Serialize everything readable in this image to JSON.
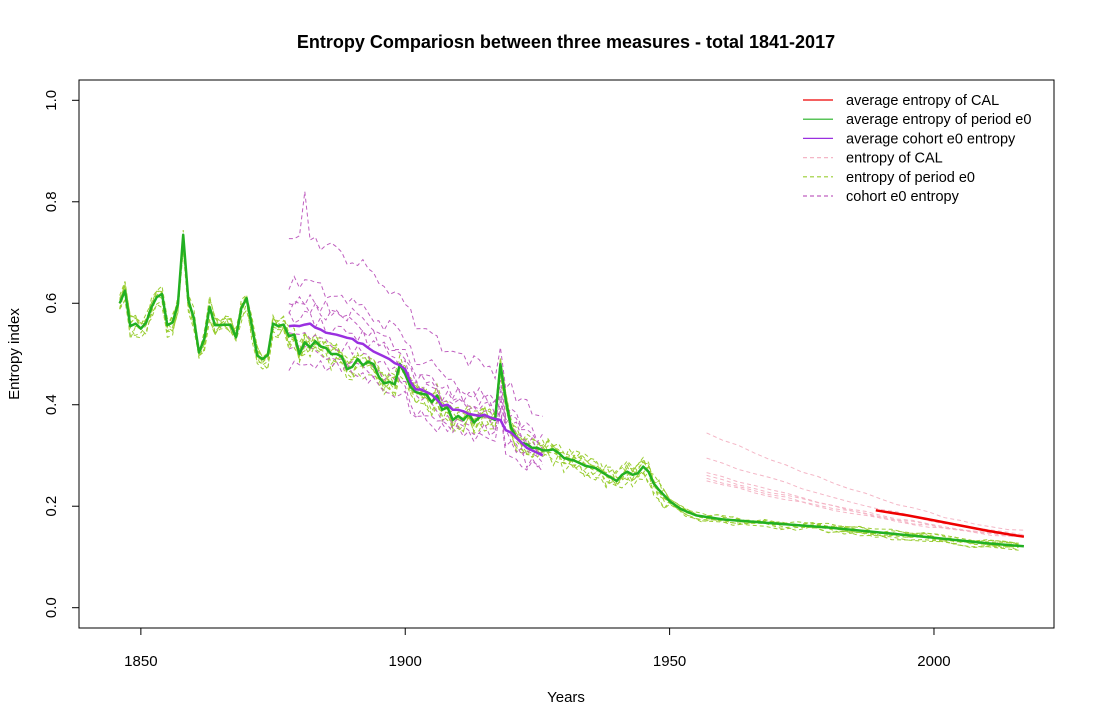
{
  "chart_data": {
    "type": "line",
    "title": "Entropy Compariosn between three measures - total 1841-2017",
    "xlabel": "Years",
    "ylabel": "Entropy index",
    "xlim": [
      1841,
      2017
    ],
    "ylim": [
      0,
      1
    ],
    "x_ticks": [
      "1850",
      "1900",
      "1950",
      "2000"
    ],
    "y_ticks": [
      "0.0",
      "0.2",
      "0.4",
      "0.6",
      "0.8",
      "1.0"
    ],
    "grid": false,
    "legend_position": "top-right",
    "colors": {
      "avg_cal": "#ee0000",
      "avg_period": "#22b022",
      "avg_cohort": "#9a30e0",
      "cal": "#f4b6c6",
      "period": "#9acd32",
      "cohort": "#c060c0"
    },
    "legend": [
      {
        "label": "average entropy of CAL",
        "key": "avg_cal",
        "style": "solid"
      },
      {
        "label": "average entropy of period e0",
        "key": "avg_period",
        "style": "solid"
      },
      {
        "label": "average cohort e0 entropy",
        "key": "avg_cohort",
        "style": "solid"
      },
      {
        "label": "entropy of CAL",
        "key": "cal",
        "style": "dashed"
      },
      {
        "label": "entropy of period e0",
        "key": "period",
        "style": "dashed"
      },
      {
        "label": "cohort e0 entropy",
        "key": "cohort",
        "style": "dashed"
      }
    ],
    "series": [
      {
        "name": "average entropy of period e0",
        "key": "avg_period",
        "points": [
          [
            1846,
            0.6
          ],
          [
            1847,
            0.625
          ],
          [
            1848,
            0.555
          ],
          [
            1849,
            0.56
          ],
          [
            1850,
            0.55
          ],
          [
            1851,
            0.562
          ],
          [
            1852,
            0.592
          ],
          [
            1853,
            0.612
          ],
          [
            1854,
            0.618
          ],
          [
            1855,
            0.557
          ],
          [
            1856,
            0.562
          ],
          [
            1857,
            0.598
          ],
          [
            1858,
            0.735
          ],
          [
            1859,
            0.605
          ],
          [
            1860,
            0.572
          ],
          [
            1861,
            0.503
          ],
          [
            1862,
            0.53
          ],
          [
            1863,
            0.593
          ],
          [
            1864,
            0.557
          ],
          [
            1865,
            0.557
          ],
          [
            1866,
            0.558
          ],
          [
            1867,
            0.557
          ],
          [
            1868,
            0.533
          ],
          [
            1869,
            0.59
          ],
          [
            1870,
            0.61
          ],
          [
            1871,
            0.555
          ],
          [
            1872,
            0.497
          ],
          [
            1873,
            0.49
          ],
          [
            1874,
            0.498
          ],
          [
            1875,
            0.56
          ],
          [
            1876,
            0.555
          ],
          [
            1877,
            0.558
          ],
          [
            1878,
            0.535
          ],
          [
            1879,
            0.538
          ],
          [
            1880,
            0.5
          ],
          [
            1881,
            0.523
          ],
          [
            1882,
            0.513
          ],
          [
            1883,
            0.525
          ],
          [
            1884,
            0.515
          ],
          [
            1885,
            0.512
          ],
          [
            1886,
            0.5
          ],
          [
            1887,
            0.5
          ],
          [
            1888,
            0.495
          ],
          [
            1889,
            0.47
          ],
          [
            1890,
            0.475
          ],
          [
            1891,
            0.49
          ],
          [
            1892,
            0.478
          ],
          [
            1893,
            0.485
          ],
          [
            1894,
            0.48
          ],
          [
            1895,
            0.455
          ],
          [
            1896,
            0.442
          ],
          [
            1897,
            0.445
          ],
          [
            1898,
            0.44
          ],
          [
            1899,
            0.48
          ],
          [
            1900,
            0.46
          ],
          [
            1901,
            0.435
          ],
          [
            1902,
            0.425
          ],
          [
            1903,
            0.422
          ],
          [
            1904,
            0.42
          ],
          [
            1905,
            0.405
          ],
          [
            1906,
            0.418
          ],
          [
            1907,
            0.39
          ],
          [
            1908,
            0.395
          ],
          [
            1909,
            0.37
          ],
          [
            1910,
            0.378
          ],
          [
            1911,
            0.37
          ],
          [
            1912,
            0.382
          ],
          [
            1913,
            0.365
          ],
          [
            1914,
            0.375
          ],
          [
            1915,
            0.38
          ],
          [
            1916,
            0.375
          ],
          [
            1917,
            0.37
          ],
          [
            1918,
            0.48
          ],
          [
            1919,
            0.41
          ],
          [
            1920,
            0.355
          ],
          [
            1921,
            0.335
          ],
          [
            1922,
            0.325
          ],
          [
            1923,
            0.322
          ],
          [
            1924,
            0.315
          ],
          [
            1925,
            0.315
          ],
          [
            1926,
            0.31
          ],
          [
            1927,
            0.31
          ],
          [
            1928,
            0.312
          ],
          [
            1929,
            0.305
          ],
          [
            1930,
            0.295
          ],
          [
            1932,
            0.29
          ],
          [
            1934,
            0.28
          ],
          [
            1936,
            0.275
          ],
          [
            1938,
            0.262
          ],
          [
            1940,
            0.25
          ],
          [
            1941,
            0.262
          ],
          [
            1942,
            0.268
          ],
          [
            1943,
            0.262
          ],
          [
            1944,
            0.265
          ],
          [
            1945,
            0.278
          ],
          [
            1946,
            0.268
          ],
          [
            1947,
            0.245
          ],
          [
            1948,
            0.232
          ],
          [
            1950,
            0.21
          ],
          [
            1952,
            0.195
          ],
          [
            1955,
            0.182
          ],
          [
            1960,
            0.174
          ],
          [
            1970,
            0.166
          ],
          [
            1980,
            0.158
          ],
          [
            1990,
            0.148
          ],
          [
            2000,
            0.138
          ],
          [
            2010,
            0.127
          ],
          [
            2017,
            0.121
          ]
        ]
      },
      {
        "name": "average cohort e0 entropy",
        "key": "avg_cohort",
        "points": [
          [
            1878,
            0.555
          ],
          [
            1879,
            0.556
          ],
          [
            1880,
            0.555
          ],
          [
            1881,
            0.558
          ],
          [
            1882,
            0.56
          ],
          [
            1883,
            0.552
          ],
          [
            1884,
            0.548
          ],
          [
            1885,
            0.542
          ],
          [
            1886,
            0.54
          ],
          [
            1887,
            0.538
          ],
          [
            1888,
            0.535
          ],
          [
            1889,
            0.532
          ],
          [
            1890,
            0.53
          ],
          [
            1891,
            0.522
          ],
          [
            1892,
            0.52
          ],
          [
            1893,
            0.512
          ],
          [
            1894,
            0.505
          ],
          [
            1895,
            0.5
          ],
          [
            1896,
            0.495
          ],
          [
            1897,
            0.49
          ],
          [
            1898,
            0.482
          ],
          [
            1899,
            0.478
          ],
          [
            1900,
            0.47
          ],
          [
            1901,
            0.445
          ],
          [
            1902,
            0.43
          ],
          [
            1903,
            0.43
          ],
          [
            1904,
            0.425
          ],
          [
            1905,
            0.42
          ],
          [
            1906,
            0.41
          ],
          [
            1907,
            0.398
          ],
          [
            1908,
            0.4
          ],
          [
            1909,
            0.39
          ],
          [
            1910,
            0.39
          ],
          [
            1911,
            0.387
          ],
          [
            1912,
            0.382
          ],
          [
            1913,
            0.38
          ],
          [
            1914,
            0.378
          ],
          [
            1915,
            0.38
          ],
          [
            1916,
            0.375
          ],
          [
            1917,
            0.372
          ],
          [
            1918,
            0.37
          ],
          [
            1919,
            0.35
          ],
          [
            1920,
            0.345
          ],
          [
            1921,
            0.335
          ],
          [
            1922,
            0.325
          ],
          [
            1923,
            0.315
          ],
          [
            1924,
            0.31
          ],
          [
            1925,
            0.305
          ],
          [
            1926,
            0.3
          ]
        ]
      },
      {
        "name": "average entropy of CAL",
        "key": "avg_cal",
        "points": [
          [
            1989,
            0.192
          ],
          [
            1995,
            0.182
          ],
          [
            2000,
            0.172
          ],
          [
            2005,
            0.162
          ],
          [
            2010,
            0.152
          ],
          [
            2015,
            0.143
          ],
          [
            2017,
            0.14
          ]
        ]
      }
    ]
  }
}
